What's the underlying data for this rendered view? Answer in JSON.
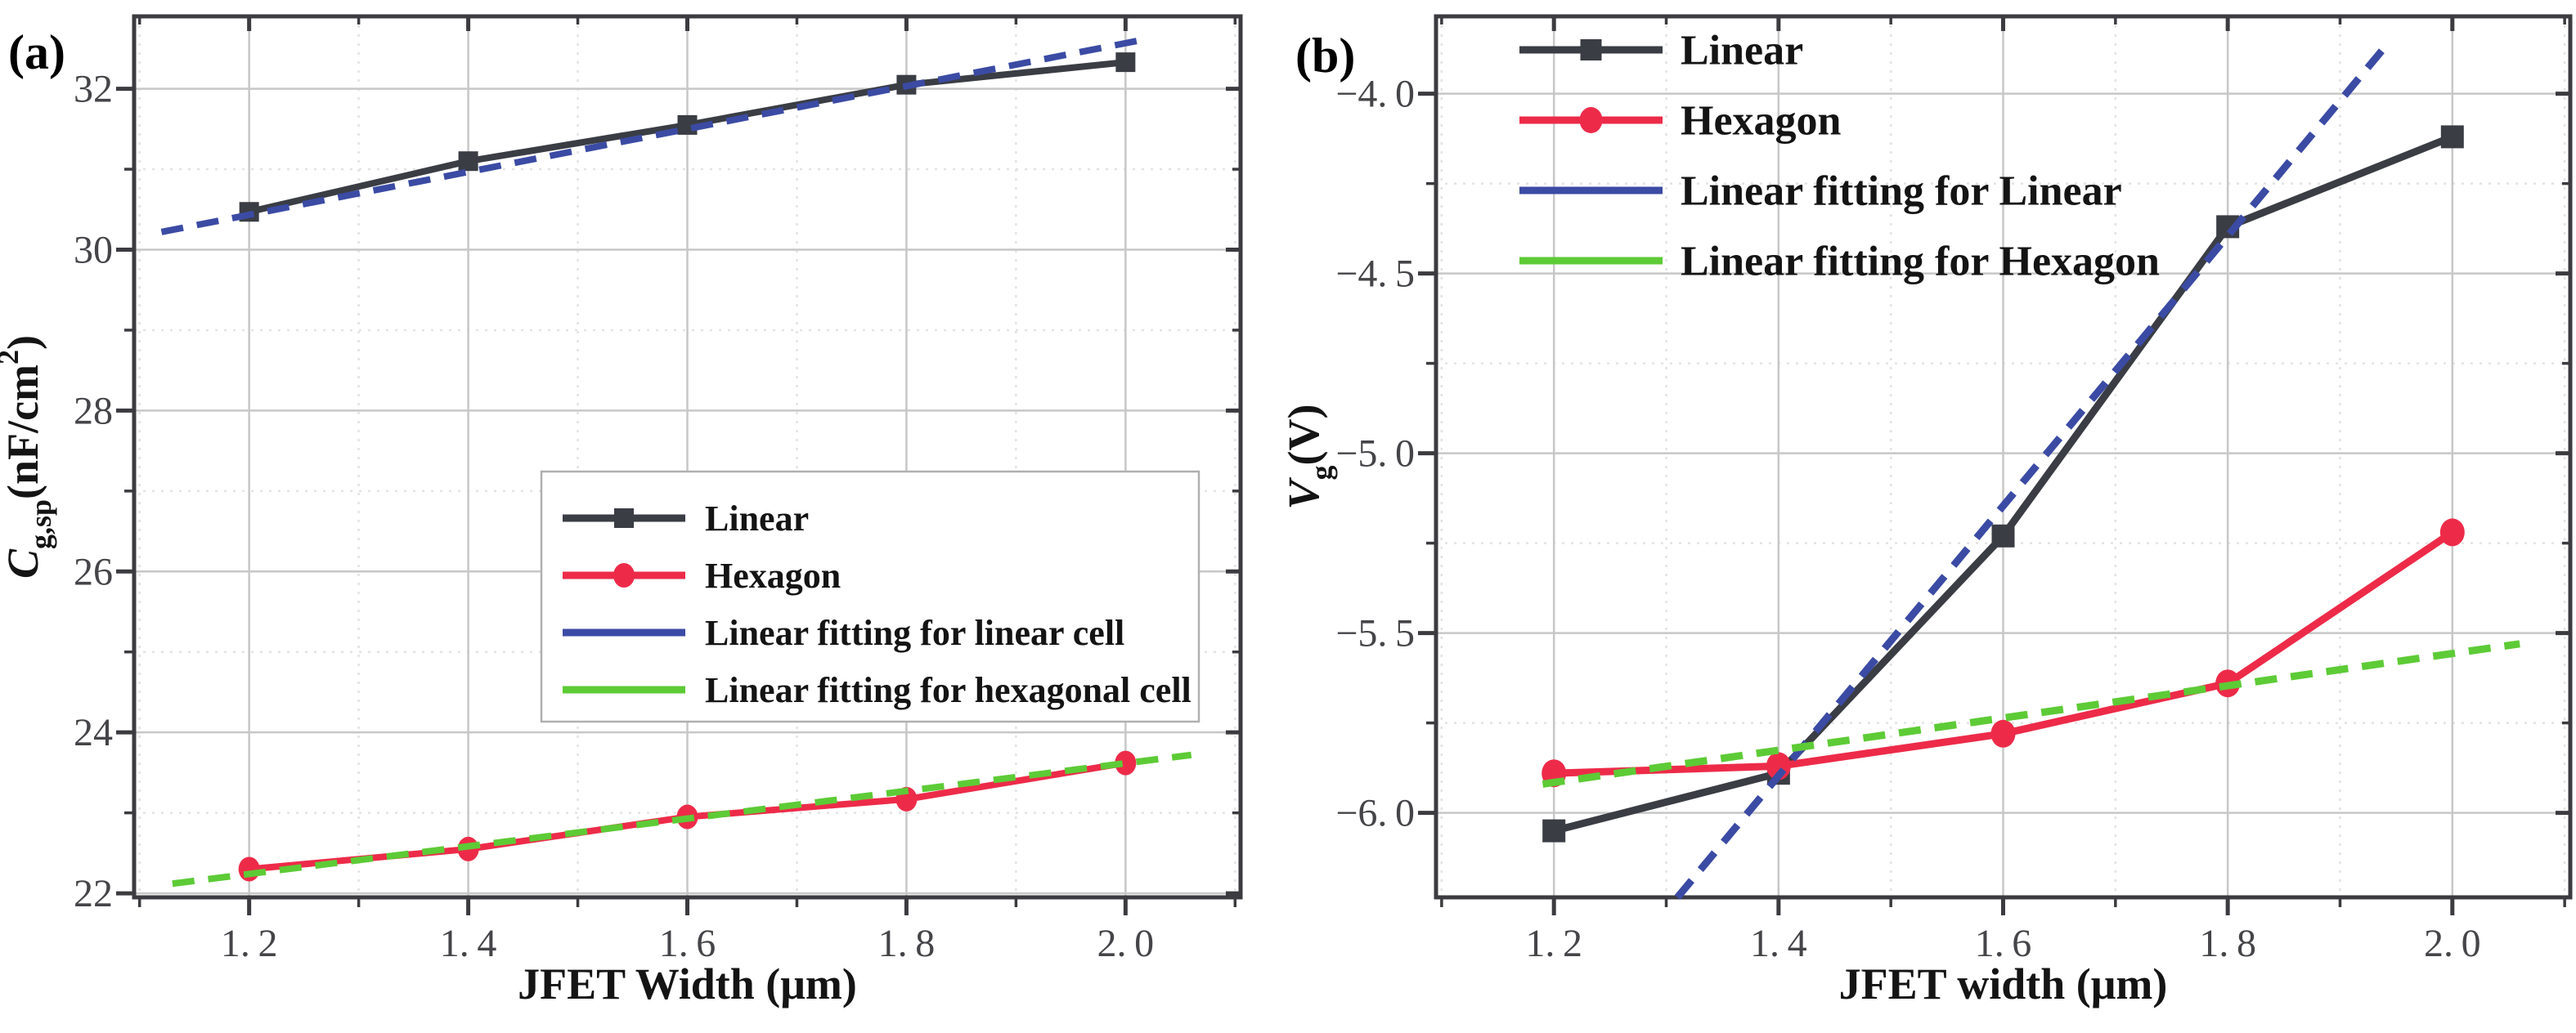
{
  "figure": {
    "background": "#ffffff",
    "description": "Two-panel line chart comparing Linear and Hexagon cell designs versus JFET width"
  },
  "colors": {
    "black_series": "#3a3d44",
    "red_series": "#ed2b49",
    "blue_fit": "#3b4ba4",
    "green_fit": "#5dcb36",
    "frame": "#3b3b40",
    "grid_major": "#c7c7c7",
    "grid_minor": "#e3e3e3",
    "tick_label": "#454549",
    "axis_label": "#141414",
    "legend_border": "#b0b0b0",
    "legend_bg": "#ffffff"
  },
  "chart_data": [
    {
      "id": "a",
      "type": "line",
      "panel_label": "(a)",
      "title": "",
      "xlabel": "JFET Width (μm)",
      "ylabel": "C_g,sp(nF/cm2)",
      "ylabel_parts": [
        {
          "t": "C",
          "i": true
        },
        {
          "t": "g,sp",
          "sub": true
        },
        {
          "t": "(nF/cm"
        },
        {
          "t": "2",
          "sup": true
        },
        {
          "t": ")"
        }
      ],
      "x": [
        1.2,
        1.4,
        1.6,
        1.8,
        2.0
      ],
      "series": [
        {
          "name": "Linear",
          "color_key": "black_series",
          "marker": "square",
          "style": "solid",
          "values": [
            30.47,
            31.1,
            31.55,
            32.05,
            32.33
          ]
        },
        {
          "name": "Hexagon",
          "color_key": "red_series",
          "marker": "circle",
          "style": "solid",
          "values": [
            22.3,
            22.55,
            22.95,
            23.17,
            23.62
          ]
        },
        {
          "name": "Linear fitting for linear cell",
          "color_key": "blue_fit",
          "style": "dashed",
          "fit_line": {
            "x": [
              1.12,
              2.02
            ],
            "y": [
              30.22,
              32.62
            ]
          }
        },
        {
          "name": "Linear fitting for hexagonal cell",
          "color_key": "green_fit",
          "style": "dashed",
          "fit_line": {
            "x": [
              1.13,
              2.06
            ],
            "y": [
              22.12,
              23.72
            ]
          }
        }
      ],
      "xlim": [
        1.095,
        2.105
      ],
      "ylim": [
        21.95,
        32.9
      ],
      "xticks": [
        1.2,
        1.4,
        1.6,
        1.8,
        2.0
      ],
      "yticks": [
        22,
        24,
        26,
        28,
        30,
        32
      ],
      "xtick_decimals": 1,
      "ytick_decimals": 0,
      "x_minor_step": 0.1,
      "y_minor_step": 1,
      "grid": true,
      "legend_position": "center-right boxed"
    },
    {
      "id": "b",
      "type": "line",
      "panel_label": "(b)",
      "title": "",
      "xlabel": "JFET width (μm)",
      "ylabel": "V_g(V)",
      "ylabel_parts": [
        {
          "t": "V",
          "i": true
        },
        {
          "t": "g",
          "sub": true
        },
        {
          "t": "(V)"
        }
      ],
      "x": [
        1.2,
        1.4,
        1.6,
        1.8,
        2.0
      ],
      "series": [
        {
          "name": "Linear",
          "color_key": "black_series",
          "marker": "square",
          "style": "solid",
          "values": [
            -6.05,
            -5.89,
            -5.23,
            -4.37,
            -4.12
          ]
        },
        {
          "name": "Hexagon",
          "color_key": "red_series",
          "marker": "circle",
          "style": "solid",
          "values": [
            -5.89,
            -5.87,
            -5.78,
            -5.64,
            -5.22
          ]
        },
        {
          "name": "Linear fitting for Linear",
          "color_key": "blue_fit",
          "style": "dashed",
          "fit_line": {
            "x": [
              1.31,
              1.94
            ],
            "y": [
              -6.235,
              -3.87
            ]
          }
        },
        {
          "name": "Linear fitting for Hexagon",
          "color_key": "green_fit",
          "style": "dashed",
          "fit_line": {
            "x": [
              1.19,
              2.06
            ],
            "y": [
              -5.92,
              -5.53
            ]
          }
        }
      ],
      "xlim": [
        1.095,
        2.105
      ],
      "ylim": [
        -6.235,
        -3.785
      ],
      "xticks": [
        1.2,
        1.4,
        1.6,
        1.8,
        2.0
      ],
      "yticks": [
        -4.0,
        -4.5,
        -5.0,
        -5.5,
        -6.0
      ],
      "xtick_decimals": 1,
      "ytick_decimals": 1,
      "x_minor_step": 0.1,
      "y_minor_step": 0.25,
      "grid": true,
      "legend_position": "top-left borderless"
    }
  ]
}
